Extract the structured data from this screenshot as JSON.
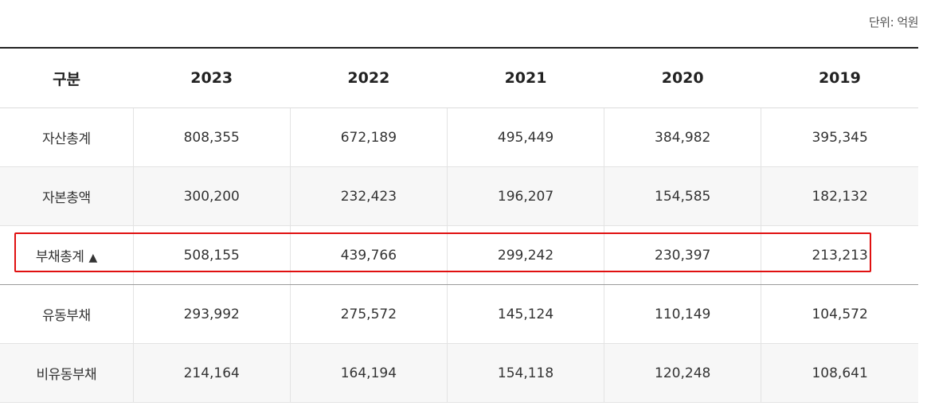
{
  "unit_label": "단위: 억원",
  "table": {
    "header": [
      "구분",
      "2023",
      "2022",
      "2021",
      "2020",
      "2019"
    ],
    "rows": [
      {
        "label": "자산총계",
        "values": [
          "808,355",
          "672,189",
          "495,449",
          "384,982",
          "395,345"
        ]
      },
      {
        "label": "자본총액",
        "values": [
          "300,200",
          "232,423",
          "196,207",
          "154,585",
          "182,132"
        ]
      },
      {
        "label": "부채총계",
        "marker": "▲",
        "values": [
          "508,155",
          "439,766",
          "299,242",
          "230,397",
          "213,213"
        ]
      },
      {
        "label": "유동부채",
        "values": [
          "293,992",
          "275,572",
          "145,124",
          "110,149",
          "104,572"
        ]
      },
      {
        "label": "비유동부채",
        "values": [
          "214,164",
          "164,194",
          "154,118",
          "120,248",
          "108,641"
        ]
      }
    ]
  },
  "colors": {
    "highlight": "#e01010",
    "alt_row": "#f7f7f7",
    "header_rule": "#222222"
  }
}
